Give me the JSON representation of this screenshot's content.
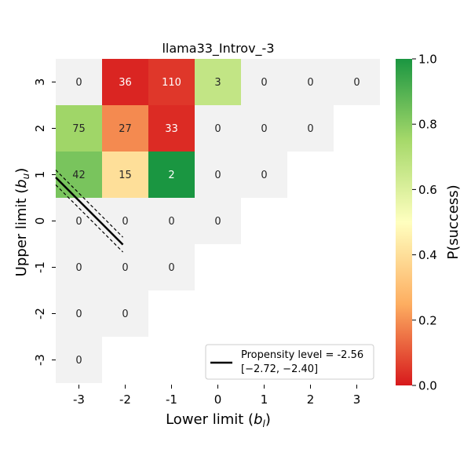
{
  "chart_data": {
    "type": "heatmap",
    "title": "llama33_Introv_-3",
    "xlabel_prefix": "Lower limit (",
    "xlabel_var": "b",
    "xlabel_sub": "l",
    "xlabel_suffix": ")",
    "ylabel_prefix": "Upper limit (",
    "ylabel_var": "b",
    "ylabel_sub": "u",
    "ylabel_suffix": ")",
    "x_ticks": [
      "-3",
      "-2",
      "-1",
      "0",
      "1",
      "2",
      "3"
    ],
    "y_ticks": [
      "3",
      "2",
      "1",
      "0",
      "-1",
      "-2",
      "-3"
    ],
    "cells": [
      {
        "x": -3,
        "y": 3,
        "count": "0",
        "p": null
      },
      {
        "x": -2,
        "y": 3,
        "count": "36",
        "p": 0.02
      },
      {
        "x": -1,
        "y": 3,
        "count": "110",
        "p": 0.05
      },
      {
        "x": 0,
        "y": 3,
        "count": "3",
        "p": 0.67
      },
      {
        "x": 1,
        "y": 3,
        "count": "0",
        "p": null
      },
      {
        "x": 2,
        "y": 3,
        "count": "0",
        "p": null
      },
      {
        "x": 3,
        "y": 3,
        "count": "0",
        "p": null
      },
      {
        "x": -3,
        "y": 2,
        "count": "75",
        "p": 0.76
      },
      {
        "x": -2,
        "y": 2,
        "count": "27",
        "p": 0.19
      },
      {
        "x": -1,
        "y": 2,
        "count": "33",
        "p": 0.03
      },
      {
        "x": 0,
        "y": 2,
        "count": "0",
        "p": null
      },
      {
        "x": 1,
        "y": 2,
        "count": "0",
        "p": null
      },
      {
        "x": 2,
        "y": 2,
        "count": "0",
        "p": null
      },
      {
        "x": -3,
        "y": 1,
        "count": "42",
        "p": 0.83
      },
      {
        "x": -2,
        "y": 1,
        "count": "15",
        "p": 0.4
      },
      {
        "x": -1,
        "y": 1,
        "count": "2",
        "p": 1.0
      },
      {
        "x": 0,
        "y": 1,
        "count": "0",
        "p": null
      },
      {
        "x": 1,
        "y": 1,
        "count": "0",
        "p": null
      },
      {
        "x": -3,
        "y": 0,
        "count": "0",
        "p": null
      },
      {
        "x": -2,
        "y": 0,
        "count": "0",
        "p": null
      },
      {
        "x": -1,
        "y": 0,
        "count": "0",
        "p": null
      },
      {
        "x": 0,
        "y": 0,
        "count": "0",
        "p": null
      },
      {
        "x": -3,
        "y": -1,
        "count": "0",
        "p": null
      },
      {
        "x": -2,
        "y": -1,
        "count": "0",
        "p": null
      },
      {
        "x": -1,
        "y": -1,
        "count": "0",
        "p": null
      },
      {
        "x": -3,
        "y": -2,
        "count": "0",
        "p": null
      },
      {
        "x": -2,
        "y": -2,
        "count": "0",
        "p": null
      },
      {
        "x": -3,
        "y": -3,
        "count": "0",
        "p": null
      }
    ],
    "propensity_line": {
      "level": -2.56,
      "ci_low": -2.72,
      "ci_high": -2.4
    },
    "legend": {
      "line1": "Propensity level = -2.56",
      "line2": "[−2.72, −2.40]",
      "placement": "lower-right"
    },
    "colorbar": {
      "label": "P(success)",
      "min": 0.0,
      "max": 1.0,
      "ticks": [
        "0.0",
        "0.2",
        "0.4",
        "0.6",
        "0.8",
        "1.0"
      ],
      "colors": [
        "#d7191c",
        "#fdae61",
        "#ffffbf",
        "#a6d96a",
        "#1a9641"
      ]
    },
    "empty_cell_color": "#f2f2f2"
  }
}
